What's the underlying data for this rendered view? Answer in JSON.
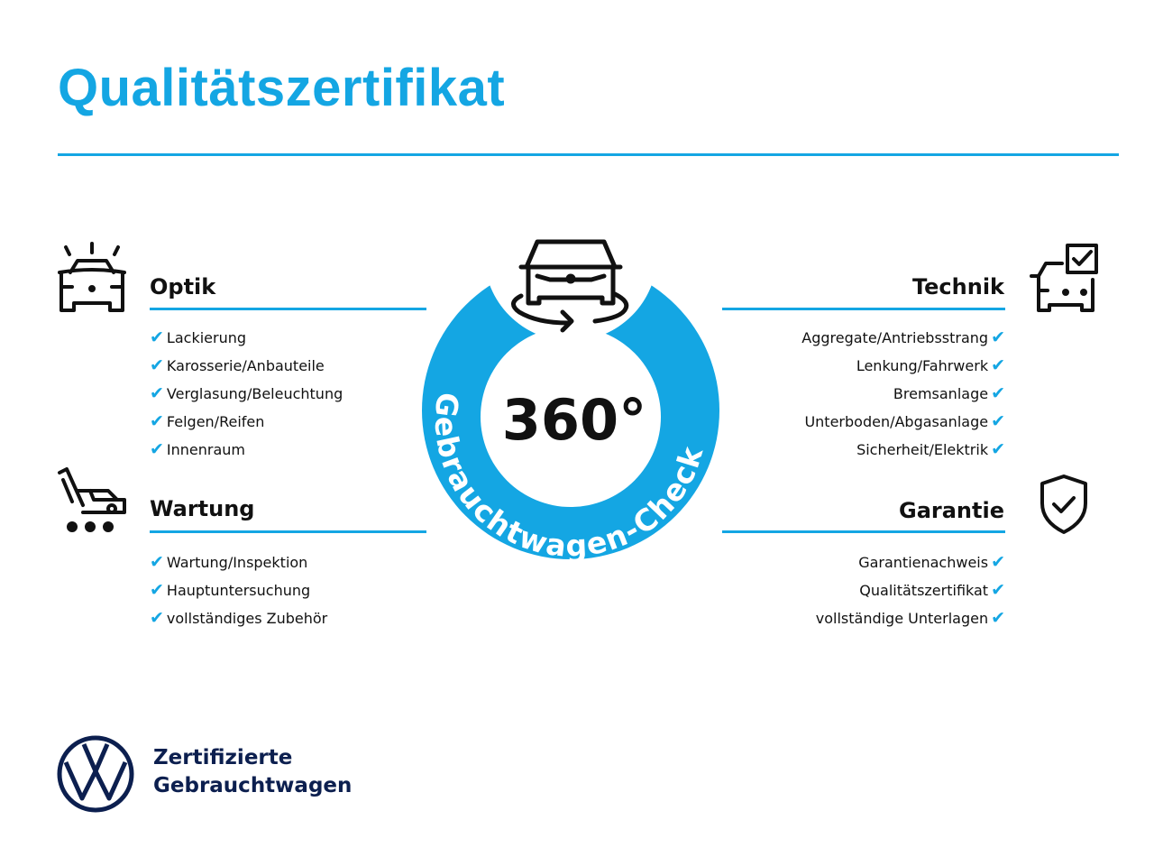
{
  "title": "Qualitätszertifikat",
  "center": {
    "number": "360°",
    "ring_text": "Gebrauchtwagen-Check"
  },
  "sections": {
    "optik": {
      "title": "Optik",
      "icon": "car-lights-icon",
      "items": [
        "Lackierung",
        "Karosserie/Anbauteile",
        "Verglasung/Beleuchtung",
        "Felgen/Reifen",
        "Innenraum"
      ]
    },
    "wartung": {
      "title": "Wartung",
      "icon": "service-trolley-icon",
      "items": [
        "Wartung/Inspektion",
        "Hauptuntersuchung",
        "vollständiges Zubehör"
      ]
    },
    "technik": {
      "title": "Technik",
      "icon": "car-checkbox-icon",
      "items": [
        "Aggregate/Antriebsstrang",
        "Lenkung/Fahrwerk",
        "Bremsanlage",
        "Unterboden/Abgasanlage",
        "Sicherheit/Elektrik"
      ]
    },
    "garantie": {
      "title": "Garantie",
      "icon": "shield-check-icon",
      "items": [
        "Garantienachweis",
        "Qualitätszertifikat",
        "vollständige Unterlagen"
      ]
    }
  },
  "check_mark": "✔",
  "brand": {
    "line1": "Zertifizierte",
    "line2": "Gebrauchtwagen"
  },
  "colors": {
    "accent": "#14a6e3",
    "brand_navy": "#0c1f4f",
    "text": "#111111"
  }
}
